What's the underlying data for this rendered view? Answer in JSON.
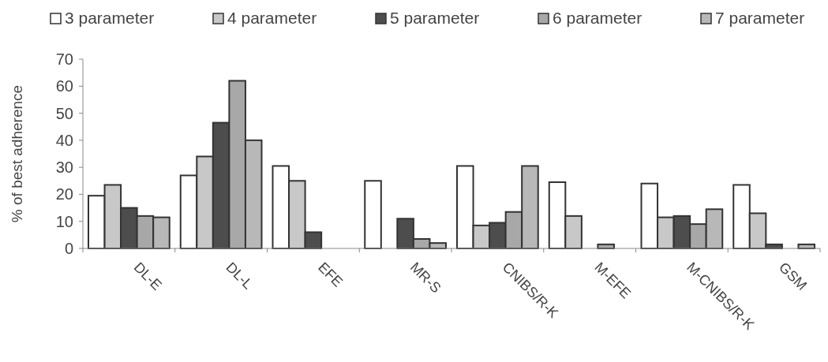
{
  "chart_data": {
    "type": "bar",
    "ylabel": "% of best adherence",
    "categories": [
      "DL-E",
      "DL-L",
      "EFE",
      "MR-S",
      "CNIBS/R-K",
      "M-EFE",
      "M-CNIBS/R-K",
      "GSM"
    ],
    "series": [
      {
        "name": "3 parameter",
        "color": "#ffffff",
        "values": [
          19.5,
          27,
          30.5,
          25,
          30.5,
          24.5,
          24,
          23.5
        ]
      },
      {
        "name": "4 parameter",
        "color": "#c8c8c8",
        "values": [
          23.5,
          34,
          25,
          null,
          8.5,
          12,
          11.5,
          13
        ]
      },
      {
        "name": "5 parameter",
        "color": "#4d4d4d",
        "values": [
          15,
          46.5,
          6,
          11,
          9.5,
          null,
          12,
          1.5
        ]
      },
      {
        "name": "6 parameter",
        "color": "#a8a8a8",
        "values": [
          12,
          62,
          null,
          3.5,
          13.5,
          1.5,
          9,
          null
        ]
      },
      {
        "name": "7 parameter",
        "color": "#b8b8b8",
        "values": [
          11.5,
          40,
          null,
          2,
          30.5,
          null,
          14.5,
          1.5
        ]
      }
    ],
    "ylim": [
      0,
      70
    ],
    "yticks": [
      0,
      10,
      20,
      30,
      40,
      50,
      60,
      70
    ],
    "legend": "top",
    "grid": false
  }
}
